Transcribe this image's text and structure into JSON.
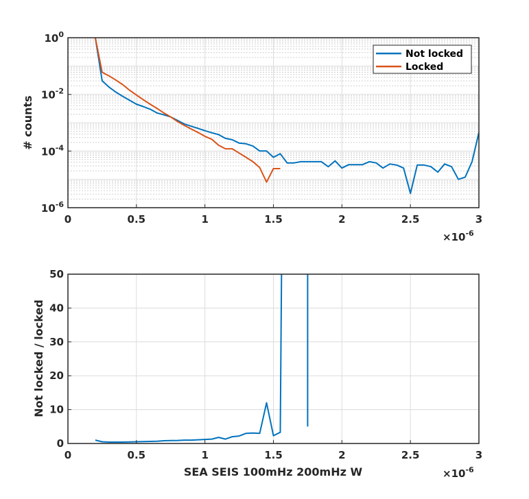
{
  "chart_data": [
    {
      "type": "line",
      "yscale": "log",
      "xlim": [
        0,
        3
      ],
      "ylim": [
        1e-06,
        1
      ],
      "x_exponent_label": "×10",
      "x_exponent_power": "-6",
      "xticks": [
        0,
        0.5,
        1,
        1.5,
        2,
        2.5,
        3
      ],
      "xtick_labels": [
        "0",
        "0.5",
        "1",
        "1.5",
        "2",
        "2.5",
        "3"
      ],
      "ytick_base": "10",
      "yticks": [
        {
          "value": 1,
          "power": "0"
        },
        {
          "value": 0.01,
          "power": "-2"
        },
        {
          "value": 0.0001,
          "power": "-4"
        },
        {
          "value": 1e-06,
          "power": "-6"
        }
      ],
      "ylabel": "# counts",
      "xlabel": "",
      "grid": true,
      "legend_position": "top-right",
      "series": [
        {
          "name": "Not locked",
          "color": "#0072BD",
          "points": [
            [
              0.2,
              1.0
            ],
            [
              0.25,
              0.03
            ],
            [
              0.3,
              0.018
            ],
            [
              0.35,
              0.012
            ],
            [
              0.4,
              0.0085
            ],
            [
              0.45,
              0.0062
            ],
            [
              0.5,
              0.0045
            ],
            [
              0.55,
              0.0037
            ],
            [
              0.6,
              0.003
            ],
            [
              0.65,
              0.0022
            ],
            [
              0.7,
              0.0019
            ],
            [
              0.75,
              0.0016
            ],
            [
              0.8,
              0.0012
            ],
            [
              0.85,
              0.0009
            ],
            [
              0.9,
              0.00075
            ],
            [
              0.95,
              0.00063
            ],
            [
              1.0,
              0.00052
            ],
            [
              1.05,
              0.00044
            ],
            [
              1.1,
              0.00038
            ],
            [
              1.15,
              0.00028
            ],
            [
              1.2,
              0.00025
            ],
            [
              1.25,
              0.00019
            ],
            [
              1.3,
              0.00018
            ],
            [
              1.35,
              0.00015
            ],
            [
              1.4,
              0.0001
            ],
            [
              1.45,
              0.0001
            ],
            [
              1.5,
              6e-05
            ],
            [
              1.55,
              8e-05
            ],
            [
              1.6,
              3.8e-05
            ],
            [
              1.65,
              3.8e-05
            ],
            [
              1.7,
              4.2e-05
            ],
            [
              1.75,
              4.2e-05
            ],
            [
              1.8,
              4.2e-05
            ],
            [
              1.85,
              4.2e-05
            ],
            [
              1.9,
              2.8e-05
            ],
            [
              1.95,
              4.5e-05
            ],
            [
              2.0,
              2.5e-05
            ],
            [
              2.05,
              3.3e-05
            ],
            [
              2.1,
              3.3e-05
            ],
            [
              2.15,
              3.3e-05
            ],
            [
              2.2,
              4.2e-05
            ],
            [
              2.25,
              3.8e-05
            ],
            [
              2.3,
              2.5e-05
            ],
            [
              2.35,
              3.5e-05
            ],
            [
              2.4,
              3.2e-05
            ],
            [
              2.45,
              2.5e-05
            ],
            [
              2.5,
              3.2e-06
            ],
            [
              2.55,
              3.2e-05
            ],
            [
              2.6,
              3.2e-05
            ],
            [
              2.65,
              2.8e-05
            ],
            [
              2.7,
              1.8e-05
            ],
            [
              2.75,
              3.5e-05
            ],
            [
              2.8,
              2.8e-05
            ],
            [
              2.85,
              1e-05
            ],
            [
              2.9,
              1.2e-05
            ],
            [
              2.95,
              4.2e-05
            ],
            [
              3.0,
              0.00045
            ]
          ]
        },
        {
          "name": "Locked",
          "color": "#D95319",
          "points": [
            [
              0.2,
              1.0
            ],
            [
              0.25,
              0.06
            ],
            [
              0.3,
              0.045
            ],
            [
              0.35,
              0.032
            ],
            [
              0.4,
              0.022
            ],
            [
              0.45,
              0.014
            ],
            [
              0.5,
              0.0095
            ],
            [
              0.55,
              0.0065
            ],
            [
              0.6,
              0.0045
            ],
            [
              0.65,
              0.0032
            ],
            [
              0.7,
              0.0022
            ],
            [
              0.75,
              0.0016
            ],
            [
              0.8,
              0.0011
            ],
            [
              0.85,
              0.0008
            ],
            [
              0.9,
              0.0006
            ],
            [
              0.95,
              0.00045
            ],
            [
              1.0,
              0.00033
            ],
            [
              1.05,
              0.00026
            ],
            [
              1.1,
              0.00016
            ],
            [
              1.15,
              0.00012
            ],
            [
              1.2,
              0.00012
            ],
            [
              1.25,
              8.5e-05
            ],
            [
              1.3,
              6e-05
            ],
            [
              1.35,
              4.2e-05
            ],
            [
              1.4,
              2.6e-05
            ],
            [
              1.45,
              8e-06
            ],
            [
              1.5,
              2.4e-05
            ],
            [
              1.55,
              2.4e-05
            ]
          ]
        }
      ]
    },
    {
      "type": "line",
      "yscale": "linear",
      "xlim": [
        0,
        3
      ],
      "ylim": [
        0,
        50
      ],
      "x_exponent_label": "×10",
      "x_exponent_power": "-6",
      "xticks": [
        0,
        0.5,
        1,
        1.5,
        2,
        2.5,
        3
      ],
      "xtick_labels": [
        "0",
        "0.5",
        "1",
        "1.5",
        "2",
        "2.5",
        "3"
      ],
      "yticks": [
        0,
        10,
        20,
        30,
        40,
        50
      ],
      "ytick_labels": [
        "0",
        "10",
        "20",
        "30",
        "40",
        "50"
      ],
      "ylabel": "Not locked / locked",
      "xlabel": "SEA SEIS 100mHz 200mHz W",
      "grid": true,
      "series": [
        {
          "color": "#0072BD",
          "points": [
            [
              0.2,
              1.0
            ],
            [
              0.25,
              0.5
            ],
            [
              0.3,
              0.4
            ],
            [
              0.35,
              0.4
            ],
            [
              0.4,
              0.4
            ],
            [
              0.45,
              0.45
            ],
            [
              0.5,
              0.5
            ],
            [
              0.55,
              0.55
            ],
            [
              0.6,
              0.6
            ],
            [
              0.65,
              0.65
            ],
            [
              0.7,
              0.8
            ],
            [
              0.75,
              0.85
            ],
            [
              0.8,
              0.9
            ],
            [
              0.85,
              1.0
            ],
            [
              0.9,
              1.0
            ],
            [
              0.95,
              1.1
            ],
            [
              1.0,
              1.2
            ],
            [
              1.05,
              1.3
            ],
            [
              1.1,
              1.8
            ],
            [
              1.15,
              1.3
            ],
            [
              1.2,
              2.0
            ],
            [
              1.25,
              2.2
            ],
            [
              1.3,
              3.0
            ],
            [
              1.35,
              3.1
            ],
            [
              1.4,
              3.0
            ],
            [
              1.45,
              12.0
            ],
            [
              1.5,
              2.3
            ],
            [
              1.55,
              3.3
            ],
            [
              1.56,
              55
            ]
          ],
          "extra_segments": [
            [
              [
                1.75,
                55
              ],
              [
                1.75,
                5
              ]
            ]
          ]
        }
      ]
    }
  ]
}
